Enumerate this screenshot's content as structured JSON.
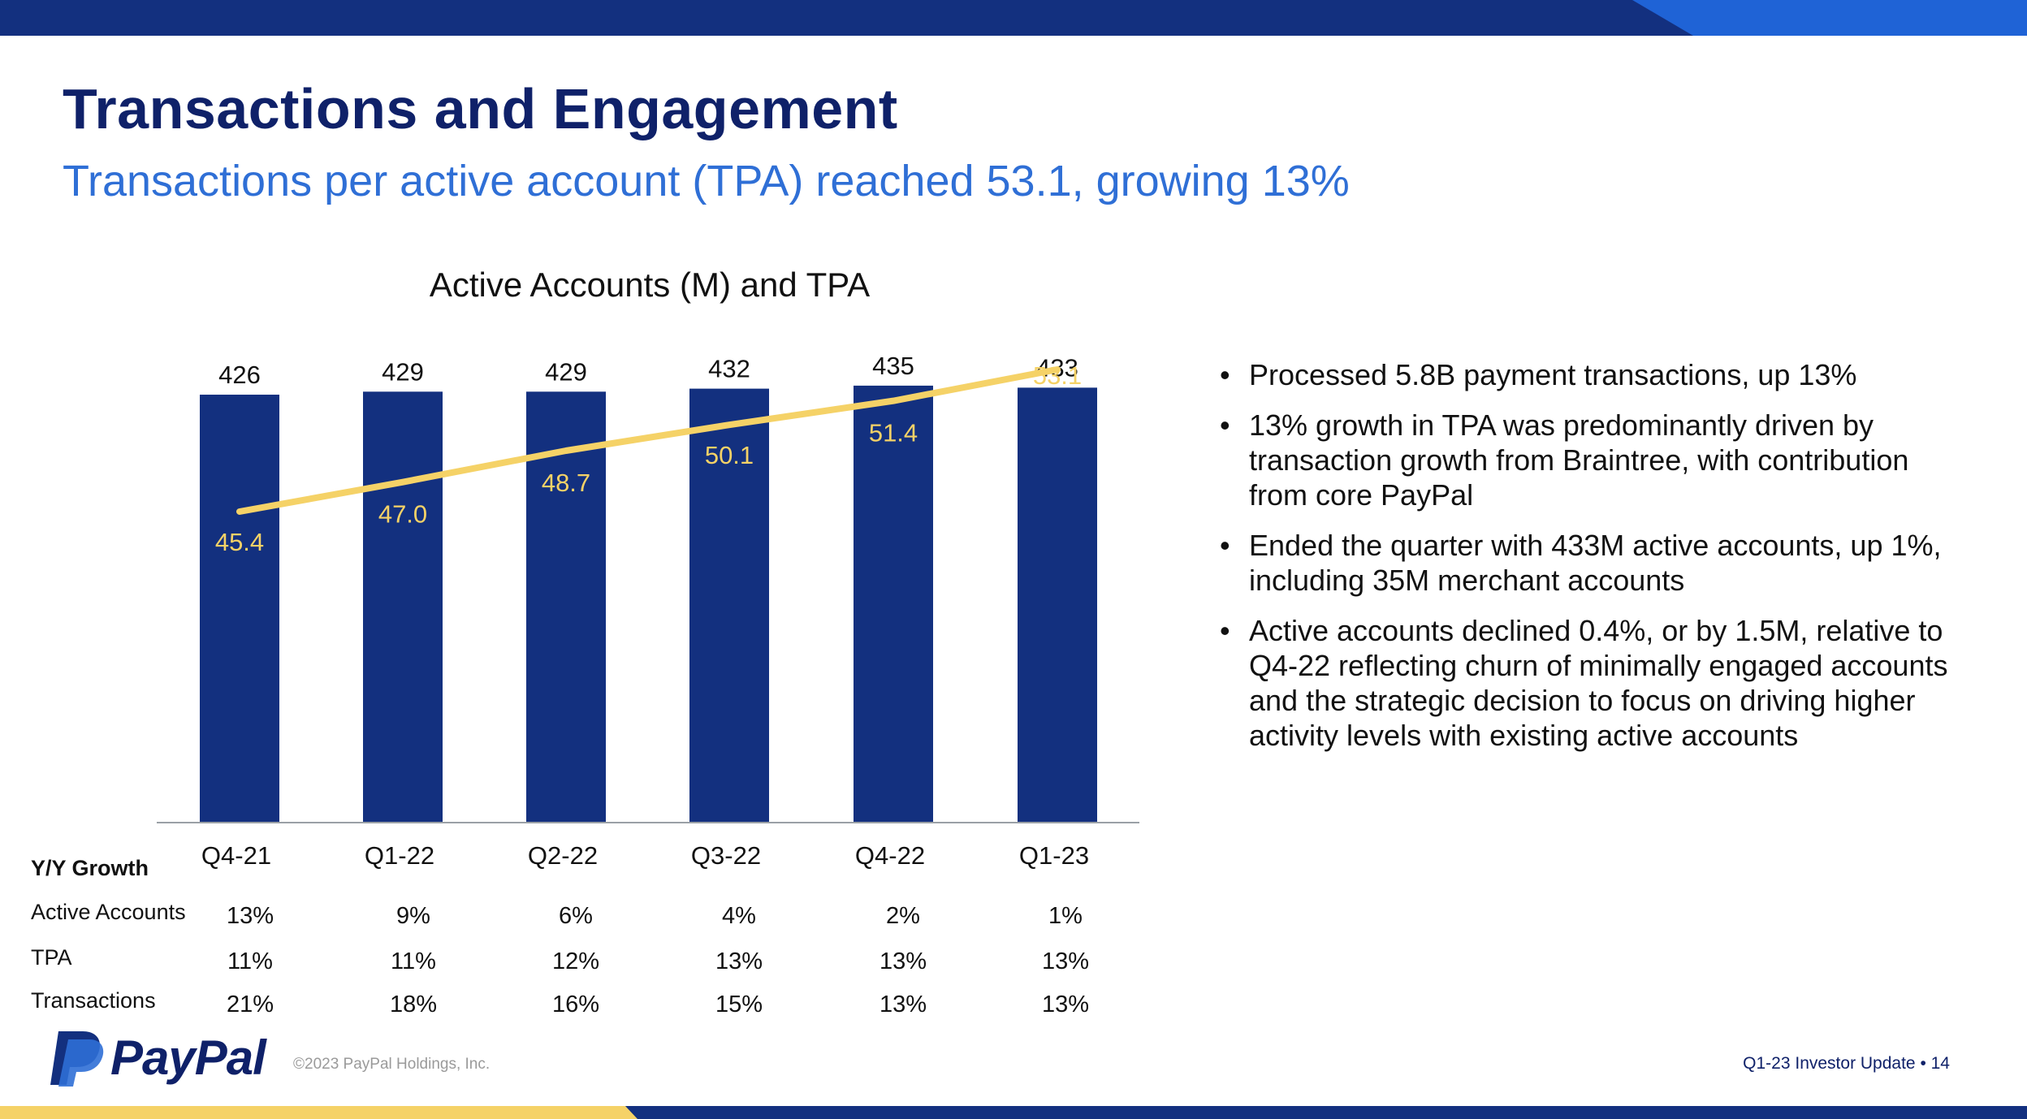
{
  "colors": {
    "navy": "#13307f",
    "dark_navy": "#0f2169",
    "blue": "#2f6fd6",
    "accent_blue": "#1f63d6",
    "yellow": "#f5d267",
    "axis": "#9aa0a6"
  },
  "header": {
    "title": "Transactions and Engagement",
    "subtitle": "Transactions per active account (TPA) reached 53.1, growing 13%"
  },
  "chart_data": {
    "type": "bar",
    "title": "Active Accounts (M) and TPA",
    "categories": [
      "Q4-21",
      "Q1-22",
      "Q2-22",
      "Q3-22",
      "Q4-22",
      "Q1-23"
    ],
    "series": [
      {
        "name": "Active Accounts (M)",
        "type": "bar",
        "values": [
          426,
          429,
          429,
          432,
          435,
          433
        ],
        "labels": [
          "426",
          "429",
          "429",
          "432",
          "435",
          "433"
        ]
      },
      {
        "name": "TPA",
        "type": "line",
        "values": [
          45.4,
          47.0,
          48.7,
          50.1,
          51.4,
          53.1
        ],
        "labels": [
          "45.4",
          "47.0",
          "48.7",
          "50.1",
          "51.4",
          "53.1"
        ]
      }
    ],
    "bar_ylim": [
      0,
      440
    ],
    "line_ylim": [
      25,
      55
    ],
    "xlabel": "",
    "ylabel": "",
    "grid": false
  },
  "growth_table": {
    "header": "Y/Y Growth",
    "rows": [
      {
        "label": "Active Accounts",
        "values": [
          "13%",
          "9%",
          "6%",
          "4%",
          "2%",
          "1%"
        ]
      },
      {
        "label": "TPA",
        "values": [
          "11%",
          "11%",
          "12%",
          "13%",
          "13%",
          "13%"
        ]
      },
      {
        "label": "Transactions",
        "values": [
          "21%",
          "18%",
          "16%",
          "15%",
          "13%",
          "13%"
        ]
      }
    ]
  },
  "bullets": [
    "Processed 5.8B payment transactions, up 13%",
    "13% growth in TPA was predominantly driven by transaction growth from Braintree, with contribution from core PayPal",
    "Ended the quarter with 433M active accounts, up 1%, including 35M merchant accounts",
    "Active accounts declined 0.4%, or by 1.5M, relative to Q4-22 reflecting churn of minimally engaged accounts and the strategic decision to focus on driving higher activity levels with existing active accounts"
  ],
  "bullet_marker": "•",
  "footer": {
    "logo_text": "PayPal",
    "copyright": "©2023 PayPal Holdings, Inc.",
    "doc_label": "Q1-23 Investor Update  •  14"
  }
}
